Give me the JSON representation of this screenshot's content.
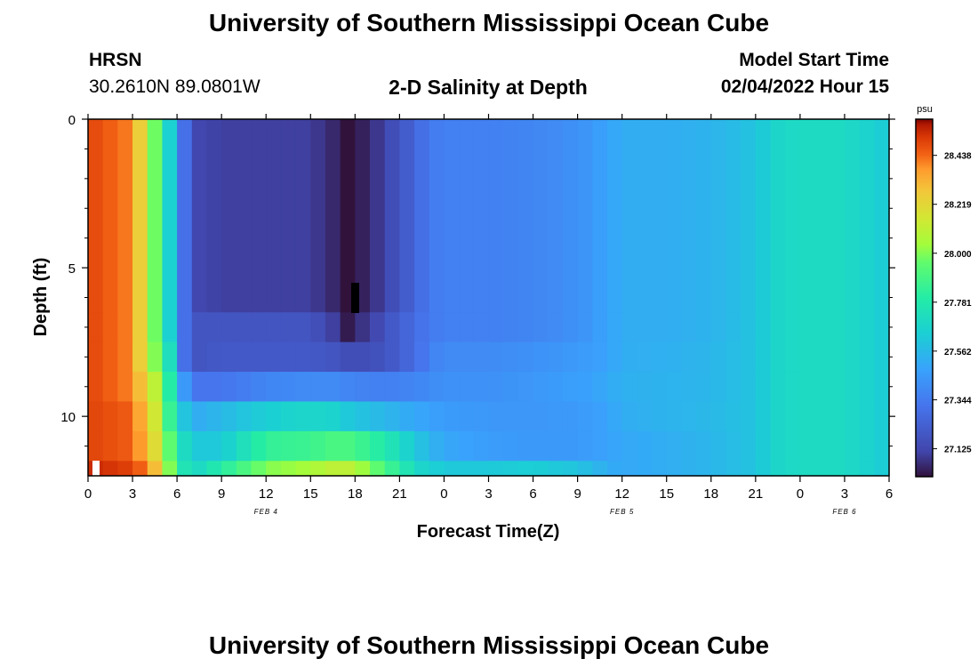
{
  "header": {
    "title": "University of Southern Mississippi Ocean Cube",
    "station_code": "HRSN",
    "station_coords": "30.2610N  89.0801W",
    "plot_title": "2-D Salinity at Depth",
    "model_start_label": "Model Start Time",
    "model_start_value": "02/04/2022 Hour 15"
  },
  "footer": {
    "title": "University of Southern Mississippi Ocean Cube"
  },
  "chart_data": {
    "type": "heatmap",
    "title": "2-D Salinity at Depth",
    "xlabel": "Forecast Time(Z)",
    "ylabel": "Depth (ft)",
    "xlim": [
      0,
      54
    ],
    "ylim": [
      12,
      0
    ],
    "x_tick_labels": [
      "0",
      "3",
      "6",
      "9",
      "12",
      "15",
      "18",
      "21",
      "0",
      "3",
      "6",
      "9",
      "12",
      "15",
      "18",
      "21",
      "0",
      "3",
      "6"
    ],
    "x_tick_values": [
      0,
      3,
      6,
      9,
      12,
      15,
      18,
      21,
      24,
      27,
      30,
      33,
      36,
      39,
      42,
      45,
      48,
      51,
      54
    ],
    "y_tick_labels": [
      "0",
      "5",
      "10"
    ],
    "y_tick_values": [
      0,
      5,
      10
    ],
    "date_labels": [
      {
        "text": "FEB 4",
        "x": 12
      },
      {
        "text": "FEB 5",
        "x": 36
      },
      {
        "text": "FEB 6",
        "x": 51
      }
    ],
    "colorbar": {
      "unit": "psu",
      "min": 27.0,
      "max": 28.6,
      "tick_labels": [
        "28.438",
        "28.219",
        "28.000",
        "27.781",
        "27.562",
        "27.344",
        "27.125"
      ],
      "tick_values": [
        28.438,
        28.219,
        28.0,
        27.781,
        27.562,
        27.344,
        27.125
      ]
    },
    "depth_layers_ft": [
      {
        "top": 0,
        "bottom": 6.5
      },
      {
        "top": 6.5,
        "bottom": 7.5
      },
      {
        "top": 7.5,
        "bottom": 8.5
      },
      {
        "top": 8.5,
        "bottom": 9.5
      },
      {
        "top": 9.5,
        "bottom": 10.5
      },
      {
        "top": 10.5,
        "bottom": 11.5
      },
      {
        "top": 11.5,
        "bottom": 12
      }
    ],
    "salinity_profiles_psu": {
      "hours": [
        0,
        3,
        4,
        5,
        5.5,
        6,
        6.5,
        7.5,
        9,
        12,
        15,
        16.5,
        17.5,
        19,
        20.5,
        22,
        23,
        24,
        27,
        30,
        33,
        35,
        36,
        39,
        42,
        45,
        46.5,
        48,
        51,
        54
      ],
      "layers": [
        [
          28.5,
          28.4,
          28.1,
          27.85,
          27.65,
          27.45,
          27.3,
          27.12,
          27.1,
          27.1,
          27.1,
          27.05,
          27.0,
          27.05,
          27.15,
          27.25,
          27.34,
          27.36,
          27.36,
          27.38,
          27.42,
          27.48,
          27.52,
          27.52,
          27.54,
          27.6,
          27.68,
          27.7,
          27.7,
          27.62
        ],
        [
          28.5,
          28.4,
          28.1,
          27.85,
          27.65,
          27.45,
          27.3,
          27.18,
          27.18,
          27.18,
          27.18,
          27.1,
          27.02,
          27.1,
          27.2,
          27.28,
          27.34,
          27.36,
          27.36,
          27.38,
          27.42,
          27.48,
          27.52,
          27.52,
          27.54,
          27.6,
          27.68,
          27.7,
          27.7,
          27.62
        ],
        [
          28.5,
          28.4,
          28.1,
          27.9,
          27.72,
          27.5,
          27.3,
          27.18,
          27.2,
          27.2,
          27.2,
          27.18,
          27.15,
          27.15,
          27.2,
          27.28,
          27.36,
          27.4,
          27.4,
          27.42,
          27.45,
          27.48,
          27.52,
          27.53,
          27.55,
          27.6,
          27.68,
          27.7,
          27.7,
          27.62
        ],
        [
          28.5,
          28.4,
          28.2,
          28.0,
          27.8,
          27.6,
          27.45,
          27.32,
          27.32,
          27.38,
          27.4,
          27.4,
          27.38,
          27.36,
          27.36,
          27.38,
          27.4,
          27.42,
          27.42,
          27.44,
          27.47,
          27.5,
          27.53,
          27.54,
          27.55,
          27.6,
          27.68,
          27.7,
          27.7,
          27.62
        ],
        [
          28.5,
          28.45,
          28.25,
          28.05,
          27.85,
          27.7,
          27.6,
          27.52,
          27.56,
          27.64,
          27.68,
          27.66,
          27.62,
          27.58,
          27.54,
          27.5,
          27.48,
          27.46,
          27.44,
          27.44,
          27.45,
          27.48,
          27.52,
          27.54,
          27.56,
          27.6,
          27.68,
          27.7,
          27.7,
          27.62
        ],
        [
          28.5,
          28.45,
          28.3,
          28.1,
          27.95,
          27.8,
          27.7,
          27.62,
          27.62,
          27.84,
          27.86,
          27.9,
          27.9,
          27.84,
          27.74,
          27.62,
          27.55,
          27.5,
          27.46,
          27.45,
          27.45,
          27.48,
          27.5,
          27.52,
          27.55,
          27.6,
          27.68,
          27.7,
          27.7,
          27.62
        ],
        [
          28.55,
          28.5,
          28.4,
          28.2,
          28.0,
          27.85,
          27.75,
          27.7,
          27.8,
          28.0,
          28.05,
          28.1,
          28.1,
          28.0,
          27.85,
          27.7,
          27.65,
          27.62,
          27.62,
          27.64,
          27.6,
          27.52,
          27.5,
          27.52,
          27.55,
          27.6,
          27.68,
          27.7,
          27.7,
          27.62
        ]
      ]
    }
  }
}
